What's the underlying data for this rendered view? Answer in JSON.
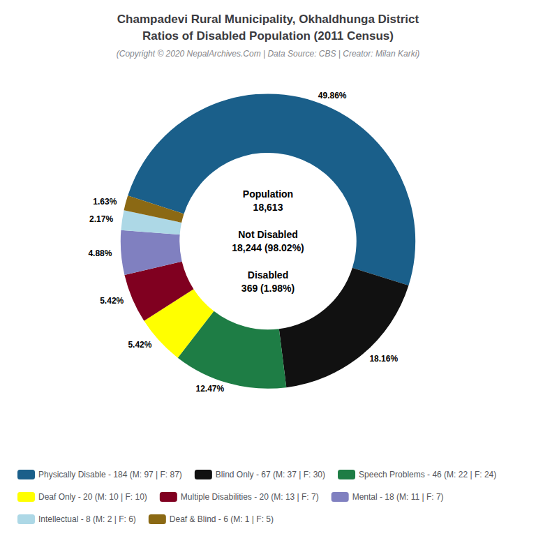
{
  "chart_data": {
    "type": "pie",
    "title": "Champadevi Rural Municipality, Okhaldhunga District\nRatios of Disabled Population (2011 Census)",
    "subtitle": "(Copyright © 2020 NepalArchives.Com | Data Source: CBS | Creator: Milan Karki)",
    "categories": [
      "Physically Disable - 184 (M: 97 | F: 87)",
      "Blind Only - 67 (M: 37 | F: 30)",
      "Speech Problems - 46 (M: 22 | F: 24)",
      "Deaf Only - 20 (M: 10 | F: 10)",
      "Multiple Disabilities - 20 (M: 13 | F: 7)",
      "Mental - 18 (M: 11 | F: 7)",
      "Intellectual - 8 (M: 2 | F: 6)",
      "Deaf & Blind - 6 (M: 1 | F: 5)"
    ],
    "values": [
      49.86,
      18.16,
      12.47,
      5.42,
      5.42,
      4.88,
      2.17,
      1.63
    ],
    "value_labels": [
      "49.86%",
      "18.16%",
      "12.47%",
      "5.42%",
      "5.42%",
      "4.88%",
      "2.17%",
      "1.63%"
    ],
    "colors": [
      "#1a5f8a",
      "#111111",
      "#1e7d45",
      "#ffff00",
      "#800020",
      "#8080c0",
      "#add8e6",
      "#8B6914"
    ],
    "data_labels": true,
    "legend": "bottom",
    "annotations": [
      "Population\n18,613",
      "Not Disabled\n18,244 (98.02%)",
      "Disabled\n369 (1.98%)"
    ]
  }
}
